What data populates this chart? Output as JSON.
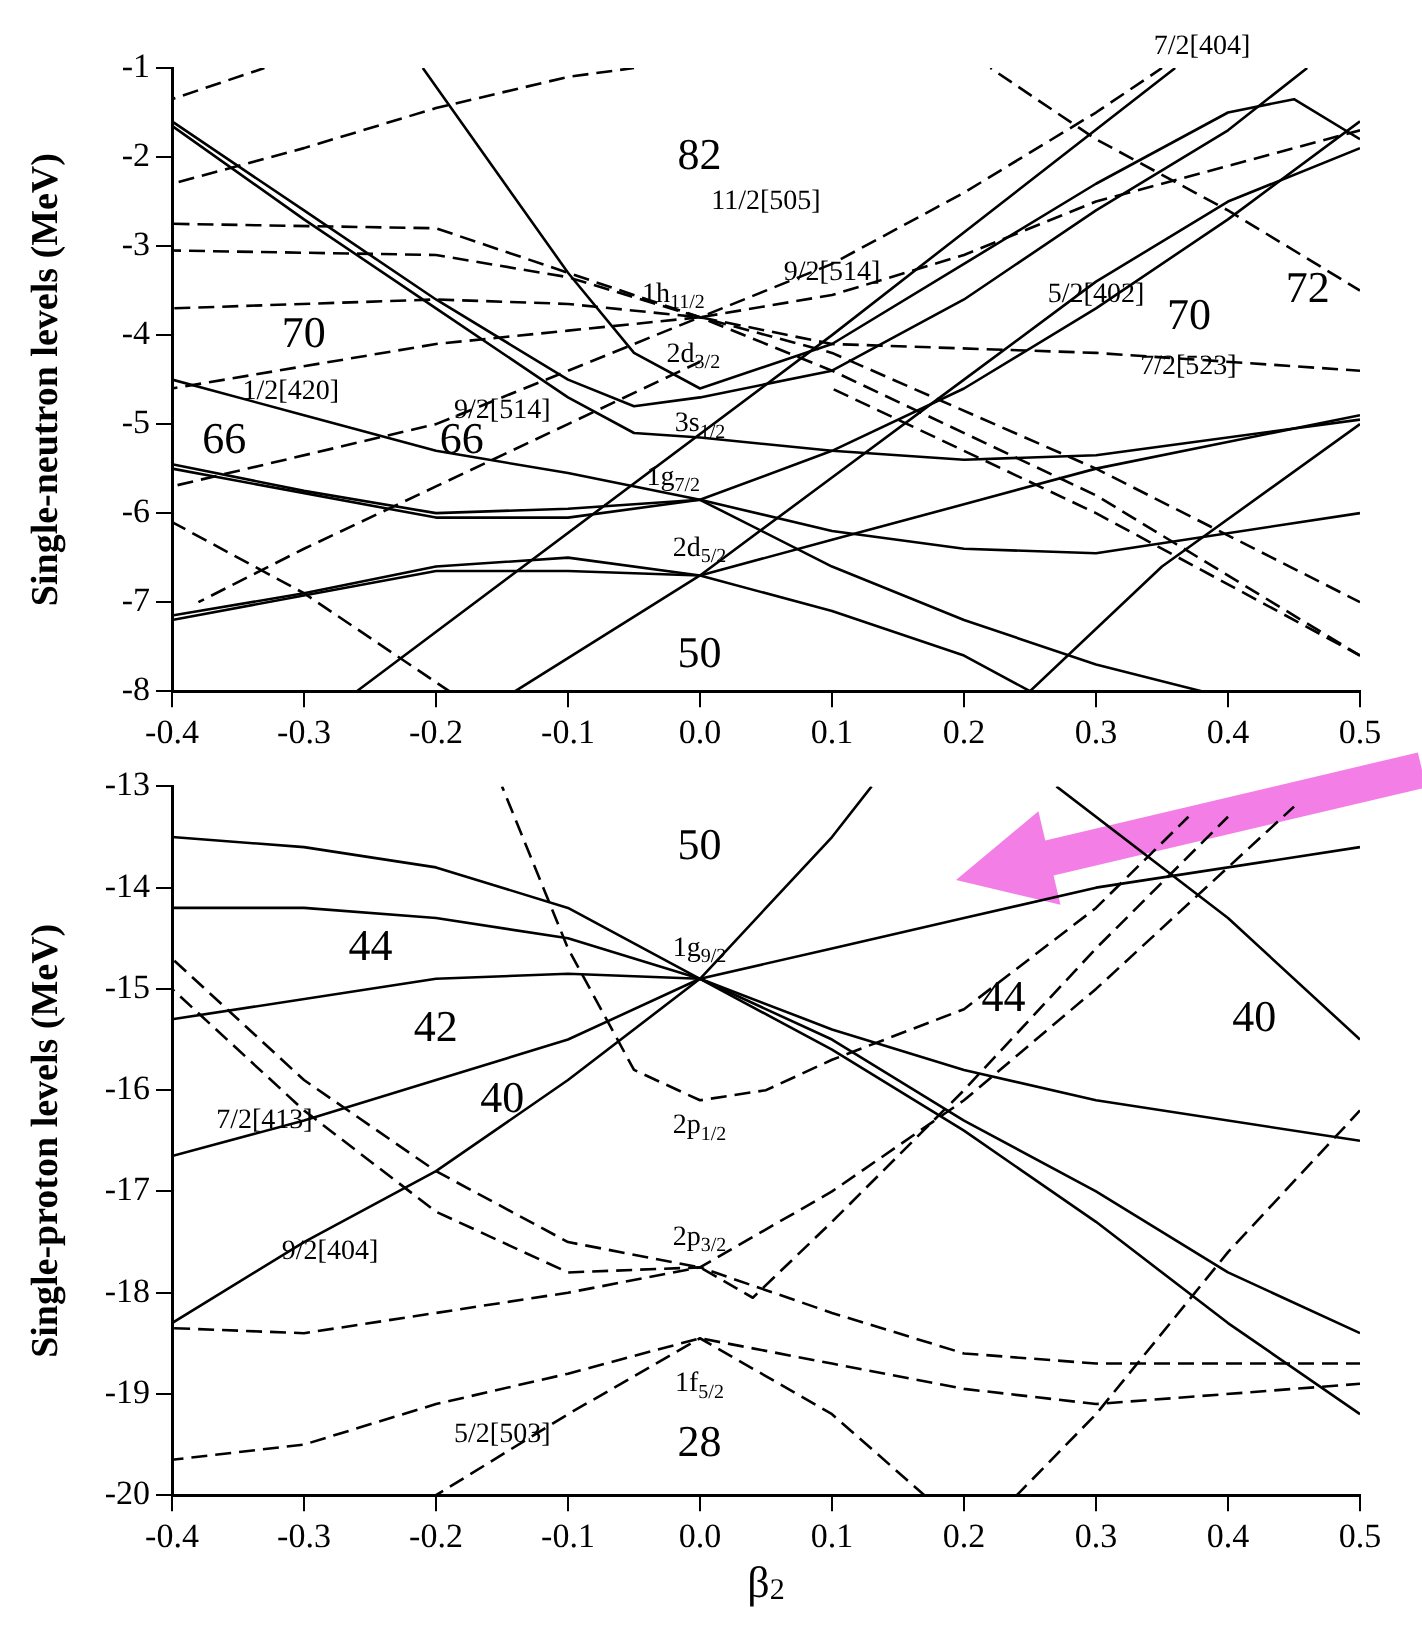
{
  "chart_data": [
    {
      "type": "line",
      "ylabel": "Single-neutron levels (MeV)",
      "xlim": [
        -0.4,
        0.5
      ],
      "ylim": [
        -8,
        -1
      ],
      "xticks": [
        -0.4,
        -0.3,
        -0.2,
        -0.1,
        {
          "value": 0,
          "label": "0.0"
        },
        0.1,
        0.2,
        0.3,
        0.4,
        0.5
      ],
      "yticks": [
        -8,
        -7,
        -6,
        -5,
        -4,
        -3,
        -2,
        -1
      ],
      "grid": false,
      "legend": false,
      "marker": "none",
      "series": [
        {
          "color": "#000000",
          "line_style": "solid",
          "x": [
            -0.21,
            -0.1,
            -0.05,
            0,
            0.1,
            0.2,
            0.3,
            0.4,
            0.45,
            0.5
          ],
          "values": [
            -1,
            -3.3,
            -4.2,
            -4.6,
            -4.1,
            -3.2,
            -2.3,
            -1.5,
            -1.35,
            -1.8
          ]
        },
        {
          "color": "#000000",
          "line_style": "solid",
          "x": [
            -0.4,
            -0.3,
            -0.2,
            -0.1,
            -0.05,
            0,
            0.1,
            0.2,
            0.3,
            0.4,
            0.46
          ],
          "values": [
            -1.6,
            -2.6,
            -3.6,
            -4.5,
            -4.8,
            -4.7,
            -4.4,
            -3.6,
            -2.6,
            -1.7,
            -1
          ]
        },
        {
          "color": "#000000",
          "line_style": "solid",
          "x": [
            -0.4,
            -0.3,
            -0.2,
            -0.1,
            -0.05,
            0,
            0.1,
            0.2,
            0.3,
            0.5
          ],
          "values": [
            -1.65,
            -2.7,
            -3.7,
            -4.7,
            -5.1,
            -5.15,
            -5.3,
            -5.4,
            -5.35,
            -4.95
          ]
        },
        {
          "color": "#000000",
          "line_style": "solid",
          "x": [
            -0.4,
            -0.3,
            -0.2,
            -0.1,
            0,
            0.1,
            0.2,
            0.3,
            0.5
          ],
          "values": [
            -4.5,
            -4.9,
            -5.3,
            -5.55,
            -5.85,
            -6.2,
            -6.4,
            -6.45,
            -6.0
          ]
        },
        {
          "color": "#000000",
          "line_style": "solid",
          "x": [
            -0.4,
            -0.3,
            -0.2,
            -0.1,
            0,
            0.1,
            0.2,
            0.3,
            0.4,
            0.5
          ],
          "values": [
            -5.45,
            -5.75,
            -6.0,
            -5.95,
            -5.85,
            -5.3,
            -4.6,
            -3.7,
            -2.7,
            -1.6
          ]
        },
        {
          "color": "#000000",
          "line_style": "solid",
          "x": [
            -0.4,
            -0.2,
            -0.1,
            0,
            0.1,
            0.2,
            0.3,
            0.38
          ],
          "values": [
            -5.5,
            -6.05,
            -6.05,
            -5.85,
            -6.6,
            -7.2,
            -7.7,
            -8
          ]
        },
        {
          "color": "#000000",
          "line_style": "solid",
          "x": [
            -0.4,
            -0.3,
            -0.2,
            -0.1,
            0,
            0.1,
            0.2,
            0.25
          ],
          "values": [
            -7.15,
            -6.9,
            -6.6,
            -6.5,
            -6.7,
            -7.1,
            -7.6,
            -8
          ]
        },
        {
          "color": "#000000",
          "line_style": "solid",
          "x": [
            -0.4,
            -0.2,
            -0.1,
            0,
            0.1,
            0.2,
            0.3,
            0.5
          ],
          "values": [
            -7.2,
            -6.65,
            -6.65,
            -6.7,
            -6.3,
            -5.9,
            -5.5,
            -4.9
          ]
        },
        {
          "color": "#000000",
          "line_style": "solid",
          "x": [
            -0.26,
            0.1,
            0.36
          ],
          "values": [
            -8,
            -4,
            -1
          ]
        },
        {
          "color": "#000000",
          "line_style": "solid",
          "x": [
            -0.14,
            0,
            0.1,
            0.2,
            0.3,
            0.4,
            0.5
          ],
          "values": [
            -8,
            -6.7,
            -5.6,
            -4.5,
            -3.4,
            -2.5,
            -1.9
          ]
        },
        {
          "color": "#000000",
          "line_style": "solid",
          "x": [
            0.25,
            0.35,
            0.5
          ],
          "values": [
            -8,
            -6.6,
            -5
          ]
        },
        {
          "color": "#000000",
          "line_style": "dashed",
          "x": [
            -0.4,
            -0.33
          ],
          "values": [
            -1.35,
            -1
          ]
        },
        {
          "color": "#000000",
          "line_style": "dashed",
          "x": [
            -0.4,
            -0.3,
            -0.2,
            -0.1,
            -0.05
          ],
          "values": [
            -2.3,
            -1.9,
            -1.45,
            -1.1,
            -1
          ]
        },
        {
          "color": "#000000",
          "line_style": "dashed",
          "x": [
            -0.4,
            -0.2,
            -0.1,
            0,
            0.1,
            0.3,
            0.5
          ],
          "values": [
            -2.75,
            -2.8,
            -3.3,
            -3.8,
            -4.2,
            -5.5,
            -7.0
          ]
        },
        {
          "color": "#000000",
          "line_style": "dashed",
          "x": [
            -0.4,
            -0.2,
            -0.1,
            0,
            0.1,
            0.3,
            0.5
          ],
          "values": [
            -3.05,
            -3.1,
            -3.35,
            -3.8,
            -4.4,
            -5.8,
            -7.6
          ]
        },
        {
          "color": "#000000",
          "line_style": "dashed",
          "x": [
            -0.4,
            -0.2,
            -0.1,
            0,
            0.1,
            0.3,
            0.5
          ],
          "values": [
            -3.7,
            -3.6,
            -3.65,
            -3.8,
            -4.1,
            -4.2,
            -4.4
          ]
        },
        {
          "color": "#000000",
          "line_style": "dashed",
          "x": [
            -0.4,
            -0.2,
            -0.1,
            0,
            0.1,
            0.2,
            0.3,
            0.35
          ],
          "values": [
            -4.6,
            -4.1,
            -3.95,
            -3.8,
            -3.2,
            -2.4,
            -1.5,
            -1
          ]
        },
        {
          "color": "#000000",
          "line_style": "dashed",
          "x": [
            -0.4,
            -0.2,
            -0.1,
            0,
            0.1,
            0.2,
            0.3,
            0.5
          ],
          "values": [
            -5.7,
            -5.0,
            -4.4,
            -3.8,
            -3.55,
            -3.1,
            -2.5,
            -1.7
          ]
        },
        {
          "color": "#000000",
          "line_style": "dashed",
          "x": [
            -0.4,
            -0.3,
            -0.19
          ],
          "values": [
            -6.1,
            -6.9,
            -8
          ]
        },
        {
          "color": "#000000",
          "line_style": "dashed",
          "x": [
            -0.38,
            -0.3,
            -0.2,
            -0.1,
            0
          ],
          "values": [
            -7.0,
            -6.4,
            -5.7,
            -5.0,
            -4.3
          ]
        },
        {
          "color": "#000000",
          "line_style": "dashed",
          "x": [
            0.22,
            0.3,
            0.4,
            0.5
          ],
          "values": [
            -1,
            -1.8,
            -2.6,
            -3.5
          ]
        },
        {
          "color": "#000000",
          "line_style": "dashed",
          "x": [
            0.1,
            0.2,
            0.3,
            0.4,
            0.5
          ],
          "values": [
            -4.6,
            -5.3,
            -6.0,
            -6.8,
            -7.6
          ]
        }
      ],
      "annotations": [
        "82",
        "70",
        "66",
        "66",
        "50",
        "70",
        "72",
        "1h$_{11/2}$",
        {
          "text": "2d$_{3/2}$",
          "x": -0.005,
          "y": -4.22
        },
        {
          "text": "3s$_{1/2}$",
          "x": 0,
          "y": -5.0
        },
        "1g$_{7/2}$",
        "2d$_{5/2}$",
        "1/2[420]",
        "9/2[514]",
        "11/2[505]",
        {
          "text": "9/2[514]",
          "x": 0.1,
          "y": -3.3
        },
        {
          "text": "5/2[402]",
          "x": 0.3,
          "y": -3.55
        },
        {
          "text": "7/2[523]",
          "x": 0.37,
          "y": -4.35
        },
        "7/2[404]"
      ]
    },
    {
      "type": "line",
      "xlabel": "β$_{2}$",
      "ylabel": "Single-proton levels (MeV)",
      "xlim": [
        -0.4,
        0.5
      ],
      "ylim": [
        -20,
        -13
      ],
      "xticks": [
        -0.4,
        -0.3,
        -0.2,
        -0.1,
        {
          "value": 0,
          "label": "0.0"
        },
        0.1,
        0.2,
        0.3,
        0.4,
        0.5
      ],
      "yticks": [
        -20,
        -19,
        -18,
        -17,
        -16,
        -15,
        -14,
        -13
      ],
      "grid": false,
      "legend": false,
      "marker": "none",
      "series": [
        {
          "color": "#000000",
          "line_style": "solid",
          "x": [
            -0.4,
            -0.3,
            -0.2,
            -0.1,
            0,
            0.1,
            0.2,
            0.3,
            0.4,
            0.5
          ],
          "values": [
            -13.5,
            -13.6,
            -13.8,
            -14.2,
            -14.9,
            -15.6,
            -16.4,
            -17.3,
            -18.3,
            -19.2
          ]
        },
        {
          "color": "#000000",
          "line_style": "solid",
          "x": [
            -0.4,
            -0.3,
            -0.2,
            -0.1,
            0,
            0.1,
            0.2,
            0.3,
            0.4,
            0.5
          ],
          "values": [
            -14.2,
            -14.2,
            -14.3,
            -14.5,
            -14.9,
            -15.5,
            -16.3,
            -17.0,
            -17.8,
            -18.4
          ]
        },
        {
          "color": "#000000",
          "line_style": "solid",
          "x": [
            -0.4,
            -0.2,
            -0.1,
            0,
            0.1,
            0.2,
            0.3,
            0.5
          ],
          "values": [
            -15.3,
            -14.9,
            -14.85,
            -14.9,
            -15.4,
            -15.8,
            -16.1,
            -16.5
          ]
        },
        {
          "color": "#000000",
          "line_style": "solid",
          "x": [
            -0.4,
            -0.3,
            -0.2,
            -0.1,
            0,
            0.1,
            0.2,
            0.3,
            0.5
          ],
          "values": [
            -16.65,
            -16.3,
            -15.9,
            -15.5,
            -14.9,
            -14.6,
            -14.3,
            -14.0,
            -13.6
          ]
        },
        {
          "color": "#000000",
          "line_style": "solid",
          "x": [
            -0.4,
            -0.3,
            -0.2,
            -0.1,
            0,
            0.05,
            0.1,
            0.13
          ],
          "values": [
            -18.3,
            -17.5,
            -16.8,
            -15.9,
            -14.9,
            -14.2,
            -13.5,
            -13
          ]
        },
        {
          "color": "#000000",
          "line_style": "solid",
          "x": [
            0.27,
            0.4,
            0.5
          ],
          "values": [
            -13,
            -14.3,
            -15.5
          ]
        },
        {
          "color": "#000000",
          "line_style": "dashed",
          "x": [
            -0.15,
            -0.1,
            -0.05,
            0,
            0.05,
            0.1,
            0.2,
            0.3,
            0.37
          ],
          "values": [
            -13,
            -14.6,
            -15.8,
            -16.1,
            -16,
            -15.7,
            -15.2,
            -14.2,
            -13.3
          ]
        },
        {
          "color": "#000000",
          "line_style": "dashed",
          "x": [
            -0.4,
            -0.3,
            -0.2,
            -0.1,
            0,
            0.04,
            0.1,
            0.2,
            0.3,
            0.4
          ],
          "values": [
            -14.7,
            -15.9,
            -16.8,
            -17.5,
            -17.75,
            -18.05,
            -17.3,
            -16,
            -14.6,
            -13.3
          ]
        },
        {
          "color": "#000000",
          "line_style": "dashed",
          "x": [
            -0.4,
            -0.3,
            -0.2,
            -0.1,
            0,
            0.1,
            0.2,
            0.3,
            0.5
          ],
          "values": [
            -15.0,
            -16.2,
            -17.2,
            -17.8,
            -17.75,
            -18.2,
            -18.6,
            -18.7,
            -18.7
          ]
        },
        {
          "color": "#000000",
          "line_style": "dashed",
          "x": [
            -0.4,
            -0.3,
            -0.2,
            -0.1,
            0,
            0.1,
            0.2,
            0.3,
            0.4,
            0.45
          ],
          "values": [
            -18.35,
            -18.4,
            -18.2,
            -18.0,
            -17.75,
            -17.0,
            -16.1,
            -15.0,
            -13.8,
            -13.2
          ]
        },
        {
          "color": "#000000",
          "line_style": "dashed",
          "x": [
            -0.4,
            -0.3,
            -0.2,
            -0.1,
            0,
            0.1,
            0.2,
            0.3,
            0.5
          ],
          "values": [
            -19.65,
            -19.5,
            -19.1,
            -18.8,
            -18.45,
            -18.7,
            -18.95,
            -19.1,
            -18.9
          ]
        },
        {
          "color": "#000000",
          "line_style": "dashed",
          "x": [
            -0.2,
            -0.1,
            0,
            0.1,
            0.17
          ],
          "values": [
            -20,
            -19.2,
            -18.45,
            -19.2,
            -20
          ]
        },
        {
          "color": "#000000",
          "line_style": "dashed",
          "x": [
            0.24,
            0.3,
            0.4,
            0.5
          ],
          "values": [
            -20,
            -19.2,
            -17.6,
            -16.2
          ]
        }
      ],
      "annotations": [
        "50",
        "44",
        "42",
        "40",
        "1g$_{9/2}$",
        "2p$_{1/2}$",
        "2p$_{3/2}$",
        "1f$_{5/2}$",
        "28",
        {
          "text": "7/2[413]",
          "x": -0.33,
          "y": -16.3
        },
        "9/2[404]",
        "5/2[503]",
        "44",
        "40"
      ]
    }
  ]
}
